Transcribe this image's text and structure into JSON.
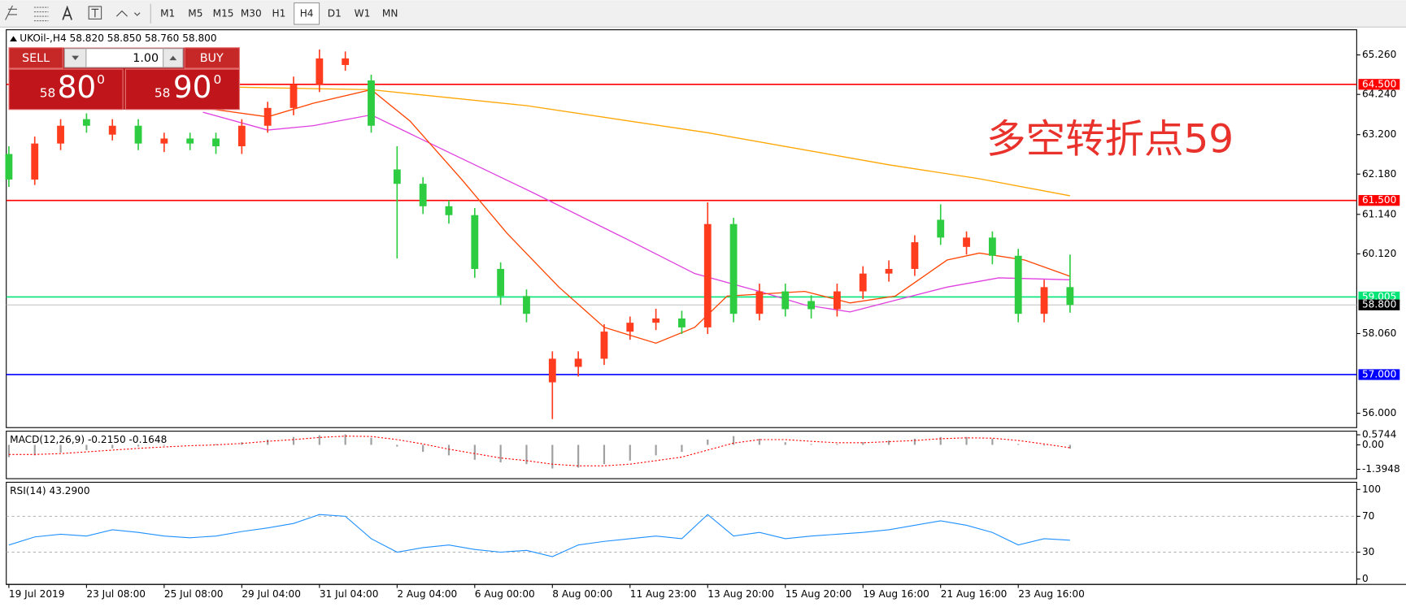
{
  "toolbar": {
    "timeframes": [
      "M1",
      "M5",
      "M15",
      "M30",
      "H1",
      "H4",
      "D1",
      "W1",
      "MN"
    ],
    "active": "H4"
  },
  "trade_panel": {
    "sell": "SELL",
    "buy": "BUY",
    "lots": "1.00",
    "sell_big": "58",
    "sell_main": "80",
    "sell_sup": "0",
    "buy_big": "58",
    "buy_main": "90",
    "buy_sup": "0"
  },
  "chart_data": [
    {
      "type": "candlestick",
      "title": "UKOil-,H4  58.820 58.850 58.760 58.800",
      "up_color": "#ff3c1e",
      "down_color": "#2ecc40",
      "x": [
        0,
        4,
        8,
        12,
        16,
        20,
        24,
        28,
        32,
        36,
        40,
        44,
        48,
        52,
        56,
        60,
        64,
        68,
        72,
        76,
        80,
        84,
        88,
        92,
        96,
        100,
        104,
        108,
        112,
        116,
        120,
        124,
        128,
        132,
        136,
        140,
        144,
        148,
        152,
        156,
        160,
        164
      ],
      "open": [
        62.7,
        62.04,
        62.97,
        63.6,
        63.2,
        63.43,
        62.97,
        63.1,
        63.1,
        62.9,
        63.43,
        63.89,
        64.5,
        65.0,
        64.6,
        62.3,
        61.93,
        61.35,
        61.12,
        59.73,
        59.03,
        56.8,
        57.2,
        57.41,
        58.11,
        58.34,
        58.45,
        58.22,
        60.89,
        58.57,
        59.15,
        58.9,
        58.69,
        59.15,
        59.61,
        59.73,
        61.0,
        60.3,
        60.54,
        60.07,
        58.57,
        59.26
      ],
      "high": [
        62.9,
        63.15,
        63.6,
        63.75,
        63.6,
        63.6,
        63.25,
        63.25,
        63.25,
        63.6,
        64.05,
        64.7,
        65.4,
        65.35,
        64.75,
        62.9,
        62.1,
        61.5,
        61.3,
        59.9,
        59.2,
        57.6,
        57.6,
        58.3,
        58.5,
        58.7,
        58.65,
        61.45,
        61.05,
        59.35,
        59.35,
        59.05,
        59.35,
        59.8,
        59.95,
        60.6,
        61.4,
        60.7,
        60.7,
        60.25,
        59.45,
        60.1
      ],
      "low": [
        61.85,
        61.9,
        62.8,
        63.25,
        63.05,
        62.8,
        62.75,
        62.8,
        62.7,
        62.7,
        63.25,
        63.7,
        64.3,
        64.85,
        63.25,
        60.0,
        61.15,
        60.9,
        59.5,
        58.8,
        58.35,
        55.85,
        56.95,
        57.25,
        57.9,
        58.15,
        58.05,
        58.05,
        58.35,
        58.4,
        58.5,
        58.45,
        58.5,
        58.95,
        59.4,
        59.55,
        60.35,
        60.1,
        59.85,
        58.35,
        58.35,
        58.6
      ],
      "close": [
        62.04,
        62.97,
        63.43,
        63.43,
        63.43,
        62.97,
        63.1,
        62.97,
        62.9,
        63.43,
        63.89,
        64.5,
        65.17,
        65.17,
        63.43,
        61.93,
        61.35,
        61.12,
        59.73,
        59.03,
        58.57,
        57.41,
        57.41,
        58.11,
        58.34,
        58.45,
        58.22,
        60.89,
        58.57,
        59.15,
        58.69,
        58.69,
        59.15,
        59.61,
        59.73,
        60.42,
        60.54,
        60.54,
        60.07,
        58.57,
        59.26,
        58.8
      ],
      "lines": [
        {
          "color": "#ffa500",
          "x": [
            28,
            56,
            80,
            108,
            136,
            150,
            164
          ],
          "values": [
            64.45,
            64.36,
            63.95,
            63.25,
            62.42,
            62.06,
            61.62
          ]
        },
        {
          "color": "#e040e0",
          "x": [
            30,
            40,
            47,
            56,
            68,
            81,
            95,
            106,
            116,
            123,
            130,
            137,
            145,
            153,
            164
          ],
          "values": [
            63.78,
            63.32,
            63.43,
            63.71,
            62.74,
            61.7,
            60.54,
            59.61,
            59.15,
            58.8,
            58.62,
            58.92,
            59.26,
            59.5,
            59.45
          ]
        },
        {
          "color": "#ff4500",
          "x": [
            30,
            40,
            47,
            56,
            62,
            70,
            77,
            85,
            92,
            100,
            106,
            111,
            123,
            130,
            137,
            145,
            150,
            157,
            164
          ],
          "values": [
            63.89,
            63.66,
            64.01,
            64.36,
            63.55,
            62.04,
            60.65,
            59.26,
            58.22,
            57.81,
            58.22,
            59.03,
            59.15,
            58.85,
            59.03,
            59.96,
            60.14,
            59.96,
            59.54
          ]
        }
      ],
      "levels": [
        {
          "value": 64.5,
          "label": "64.500",
          "color": "#ff0000"
        },
        {
          "value": 61.5,
          "label": "61.500",
          "color": "#ff0000"
        },
        {
          "value": 59.005,
          "label": "59.005",
          "color": "#00e676"
        },
        {
          "value": 57,
          "label": "57.000",
          "color": "#0000ff"
        }
      ],
      "current_price": {
        "value": 58.8,
        "label": "58.800"
      },
      "annotation": "多空转折点59",
      "annotation_color": "#e8322b",
      "xlim": [
        -0.4,
        208.3
      ],
      "ylim": [
        55.63,
        65.91
      ],
      "grid": false,
      "yticks": [
        {
          "value": 65.26,
          "label": "65.260"
        },
        {
          "value": 64.24,
          "label": "64.240"
        },
        {
          "value": 63.2,
          "label": "63.200"
        },
        {
          "value": 62.18,
          "label": "62.180"
        },
        {
          "value": 61.14,
          "label": "61.140"
        },
        {
          "value": 60.12,
          "label": "60.120"
        },
        {
          "value": 58.06,
          "label": "58.060"
        },
        {
          "value": 56,
          "label": "56.000"
        }
      ],
      "xticks": [
        {
          "value": 0,
          "label": "19 Jul 2019"
        },
        {
          "value": 12,
          "label": "23 Jul 08:00"
        },
        {
          "value": 24,
          "label": "25 Jul 08:00"
        },
        {
          "value": 36,
          "label": "29 Jul 04:00"
        },
        {
          "value": 48,
          "label": "31 Jul 04:00"
        },
        {
          "value": 60,
          "label": "2 Aug 04:00"
        },
        {
          "value": 72,
          "label": "6 Aug 00:00"
        },
        {
          "value": 84,
          "label": "8 Aug 00:00"
        },
        {
          "value": 96,
          "label": "11 Aug 23:00"
        },
        {
          "value": 108,
          "label": "13 Aug 20:00"
        },
        {
          "value": 120,
          "label": "15 Aug 20:00"
        },
        {
          "value": 132,
          "label": "19 Aug 16:00"
        },
        {
          "value": 144,
          "label": "21 Aug 16:00"
        },
        {
          "value": 156,
          "label": "23 Aug 16:00"
        }
      ]
    },
    {
      "type": "macd",
      "title": "MACD(12,26,9) -0.2150 -0.1648",
      "hist_color": "#a0a0a0",
      "signal_color": "#ff0000",
      "x": [
        0,
        4,
        8,
        12,
        16,
        20,
        24,
        28,
        32,
        36,
        40,
        44,
        48,
        52,
        56,
        60,
        64,
        68,
        72,
        76,
        80,
        84,
        88,
        92,
        96,
        100,
        104,
        108,
        112,
        116,
        120,
        124,
        128,
        132,
        136,
        140,
        144,
        148,
        152,
        156,
        160,
        164
      ],
      "values": [
        -0.7,
        -0.6,
        -0.45,
        -0.3,
        -0.2,
        -0.1,
        -0.05,
        0,
        0.05,
        0.15,
        0.3,
        0.45,
        0.55,
        0.6,
        0.4,
        -0.1,
        -0.4,
        -0.6,
        -0.85,
        -1.0,
        -1.1,
        -1.35,
        -1.3,
        -1.1,
        -0.9,
        -0.6,
        -0.4,
        0.3,
        0.5,
        0.35,
        0.15,
        0.05,
        0.05,
        0.15,
        0.25,
        0.35,
        0.45,
        0.45,
        0.35,
        0.05,
        -0.05,
        -0.215
      ],
      "signal": [
        -0.55,
        -0.55,
        -0.5,
        -0.4,
        -0.3,
        -0.2,
        -0.12,
        -0.05,
        0,
        0.08,
        0.2,
        0.3,
        0.42,
        0.5,
        0.48,
        0.3,
        0.05,
        -0.25,
        -0.5,
        -0.75,
        -0.9,
        -1.1,
        -1.2,
        -1.2,
        -1.1,
        -0.9,
        -0.7,
        -0.3,
        0.1,
        0.3,
        0.3,
        0.2,
        0.12,
        0.12,
        0.18,
        0.25,
        0.35,
        0.4,
        0.38,
        0.25,
        0.05,
        -0.165
      ],
      "xlim": [
        -0.4,
        208.3
      ],
      "ylim": [
        -1.93,
        0.78
      ],
      "yticks": [
        {
          "value": 0.5744,
          "label": "0.5744"
        },
        {
          "value": 0,
          "label": "0.00"
        },
        {
          "value": -1.3948,
          "label": "-1.3948"
        }
      ]
    },
    {
      "type": "line",
      "title": "RSI(14) 43.2900",
      "color": "#1e90ff",
      "x": [
        0,
        4,
        8,
        12,
        16,
        20,
        24,
        28,
        32,
        36,
        40,
        44,
        48,
        52,
        56,
        60,
        64,
        68,
        72,
        76,
        80,
        84,
        88,
        92,
        96,
        100,
        104,
        108,
        112,
        116,
        120,
        124,
        128,
        132,
        136,
        140,
        144,
        148,
        152,
        156,
        160,
        164
      ],
      "values": [
        38,
        47,
        50,
        48,
        55,
        52,
        48,
        46,
        48,
        53,
        57,
        62,
        72,
        70,
        45,
        30,
        35,
        38,
        33,
        30,
        32,
        25,
        38,
        42,
        45,
        48,
        45,
        72,
        48,
        52,
        45,
        48,
        50,
        52,
        55,
        60,
        65,
        60,
        52,
        38,
        45,
        43.29
      ],
      "xlim": [
        -0.4,
        208.3
      ],
      "ylim": [
        0,
        100
      ],
      "yticks": [
        100,
        70,
        30,
        0
      ],
      "grid": true
    }
  ]
}
